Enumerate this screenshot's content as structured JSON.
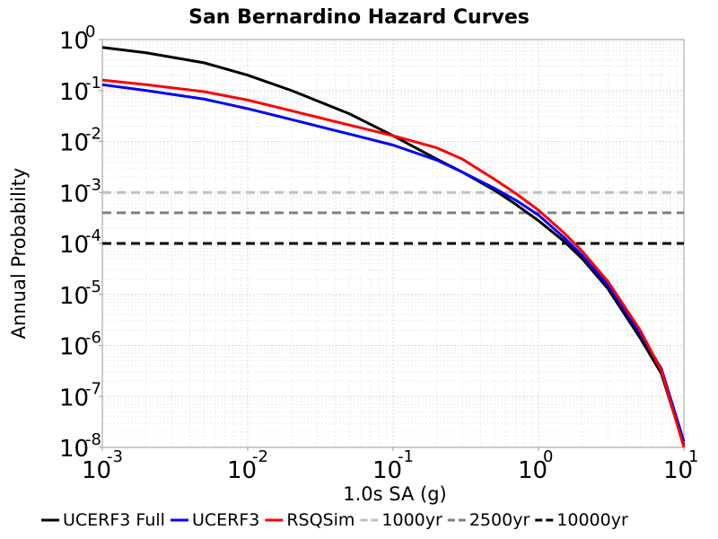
{
  "chart_data": {
    "type": "line",
    "title": "San Bernardino Hazard Curves",
    "xlabel": "1.0s SA (g)",
    "ylabel": "Annual Probability",
    "xscale": "log",
    "yscale": "log",
    "xlim": [
      0.001,
      10
    ],
    "ylim": [
      1e-08,
      1
    ],
    "grid": true,
    "legend_position": "bottom",
    "x_ticks": [
      {
        "base": "10",
        "exp": "-3"
      },
      {
        "base": "10",
        "exp": "-2"
      },
      {
        "base": "10",
        "exp": "-1"
      },
      {
        "base": "10",
        "exp": "0"
      },
      {
        "base": "10",
        "exp": "1"
      }
    ],
    "y_ticks": [
      {
        "base": "10",
        "exp": "0"
      },
      {
        "base": "10",
        "exp": "-1"
      },
      {
        "base": "10",
        "exp": "-2"
      },
      {
        "base": "10",
        "exp": "-3"
      },
      {
        "base": "10",
        "exp": "-4"
      },
      {
        "base": "10",
        "exp": "-5"
      },
      {
        "base": "10",
        "exp": "-6"
      },
      {
        "base": "10",
        "exp": "-7"
      },
      {
        "base": "10",
        "exp": "-8"
      }
    ],
    "series": [
      {
        "name": "UCERF3 Full",
        "color": "#000000",
        "dash": "solid",
        "x": [
          0.001,
          0.002,
          0.005,
          0.01,
          0.02,
          0.05,
          0.1,
          0.2,
          0.3,
          0.5,
          0.7,
          1.0,
          1.5,
          2.0,
          3.0,
          5.0,
          7.0,
          10.0
        ],
        "y": [
          0.7,
          0.55,
          0.35,
          0.2,
          0.1,
          0.035,
          0.013,
          0.0045,
          0.0025,
          0.0011,
          0.00058,
          0.00028,
          0.00011,
          5e-05,
          1.3e-05,
          1.4e-06,
          2.8e-07,
          1.1e-08
        ]
      },
      {
        "name": "UCERF3",
        "color": "#0000ff",
        "dash": "solid",
        "x": [
          0.001,
          0.002,
          0.005,
          0.01,
          0.02,
          0.05,
          0.1,
          0.2,
          0.3,
          0.5,
          0.7,
          1.0,
          1.5,
          2.0,
          3.0,
          5.0,
          7.0,
          10.0
        ],
        "y": [
          0.13,
          0.1,
          0.068,
          0.044,
          0.027,
          0.014,
          0.0085,
          0.0043,
          0.0025,
          0.0012,
          0.0007,
          0.00036,
          0.00013,
          5.8e-05,
          1.5e-05,
          1.7e-06,
          3.5e-07,
          1.3e-08
        ]
      },
      {
        "name": "RSQSim",
        "color": "#ff0000",
        "dash": "solid",
        "x": [
          0.001,
          0.002,
          0.005,
          0.01,
          0.02,
          0.05,
          0.1,
          0.2,
          0.3,
          0.5,
          0.7,
          1.0,
          1.5,
          2.0,
          3.0,
          5.0,
          7.0,
          10.0
        ],
        "y": [
          0.16,
          0.13,
          0.095,
          0.065,
          0.04,
          0.021,
          0.013,
          0.0075,
          0.0045,
          0.0018,
          0.00095,
          0.00045,
          0.00016,
          7e-05,
          1.8e-05,
          2e-06,
          3.2e-07,
          1e-08
        ]
      },
      {
        "name": "1000yr",
        "color": "#c0c0c0",
        "dash": "dashed",
        "x": [
          0.001,
          10.0
        ],
        "y": [
          0.001,
          0.001
        ]
      },
      {
        "name": "2500yr",
        "color": "#808080",
        "dash": "dashed",
        "x": [
          0.001,
          10.0
        ],
        "y": [
          0.0004,
          0.0004
        ]
      },
      {
        "name": "10000yr",
        "color": "#000000",
        "dash": "dashed",
        "x": [
          0.001,
          10.0
        ],
        "y": [
          0.0001,
          0.0001
        ]
      }
    ]
  }
}
